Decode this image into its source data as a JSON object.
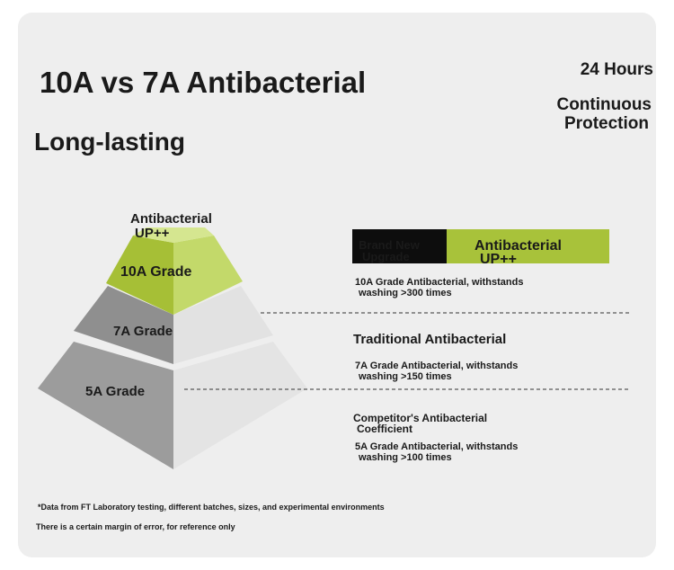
{
  "header": {
    "title": "10A vs 7A Antibacterial",
    "subtitle": "Long-lasting",
    "badge": {
      "hours": "24 Hours",
      "protection": [
        "Continuous",
        "Protection"
      ]
    }
  },
  "pyramid": {
    "top_label": [
      "Antibacterial",
      "UP++"
    ],
    "tiers": [
      "10A Grade",
      "7A Grade",
      "5A Grade"
    ]
  },
  "legend": {
    "upgrade": [
      "Brand New",
      "Upgrade"
    ],
    "highlight": [
      "Antibacterial",
      "UP++"
    ]
  },
  "levels": [
    {
      "description": [
        "10A Grade Antibacterial, withstands",
        "washing >300 times"
      ]
    },
    {
      "heading": [
        "Traditional Antibacterial"
      ],
      "description": [
        "7A Grade Antibacterial, withstands",
        "washing >150 times"
      ]
    },
    {
      "heading": [
        "Competitor's Antibacterial",
        "Coefficient"
      ],
      "description": [
        "5A Grade Antibacterial, withstands",
        "washing >100 times"
      ]
    }
  ],
  "footnotes": [
    "*Data from FT Laboratory testing, different batches, sizes, and experimental environments",
    "There is a certain margin of error, for reference only"
  ]
}
